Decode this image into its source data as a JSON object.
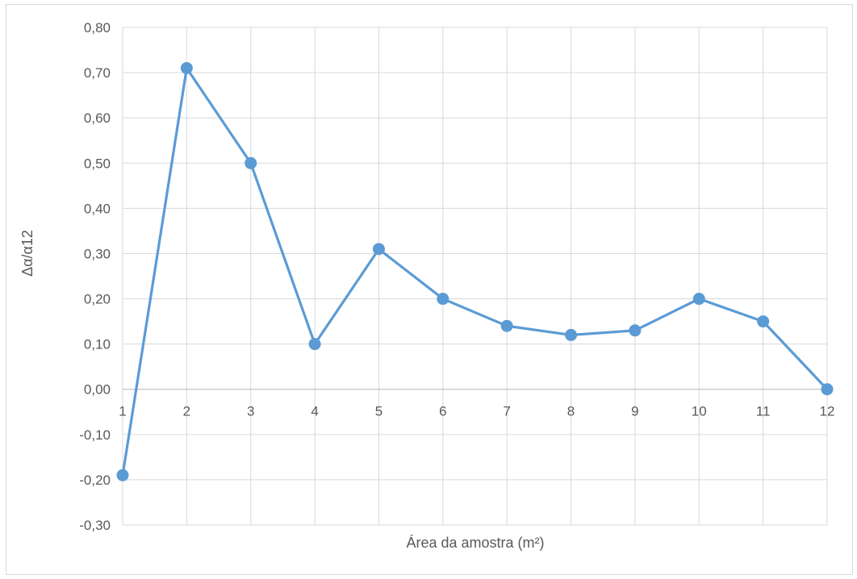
{
  "chart_data": {
    "type": "line",
    "title": "",
    "xlabel": "Área da amostra (m²)",
    "ylabel": "Δα/α12",
    "categories": [
      "1",
      "2",
      "3",
      "4",
      "5",
      "6",
      "7",
      "8",
      "9",
      "10",
      "11",
      "12"
    ],
    "series": [
      {
        "values": [
          -0.19,
          0.71,
          0.5,
          0.1,
          0.31,
          0.2,
          0.14,
          0.12,
          0.13,
          0.2,
          0.15,
          0.0
        ],
        "color": "#5b9bd5",
        "marker": "circle"
      }
    ],
    "ylim": [
      -0.3,
      0.8
    ],
    "yticks": [
      "-0,30",
      "-0,20",
      "-0,10",
      "0,00",
      "0,10",
      "0,20",
      "0,30",
      "0,40",
      "0,50",
      "0,60",
      "0,70",
      "0,80"
    ],
    "grid": true,
    "legend": "none"
  }
}
